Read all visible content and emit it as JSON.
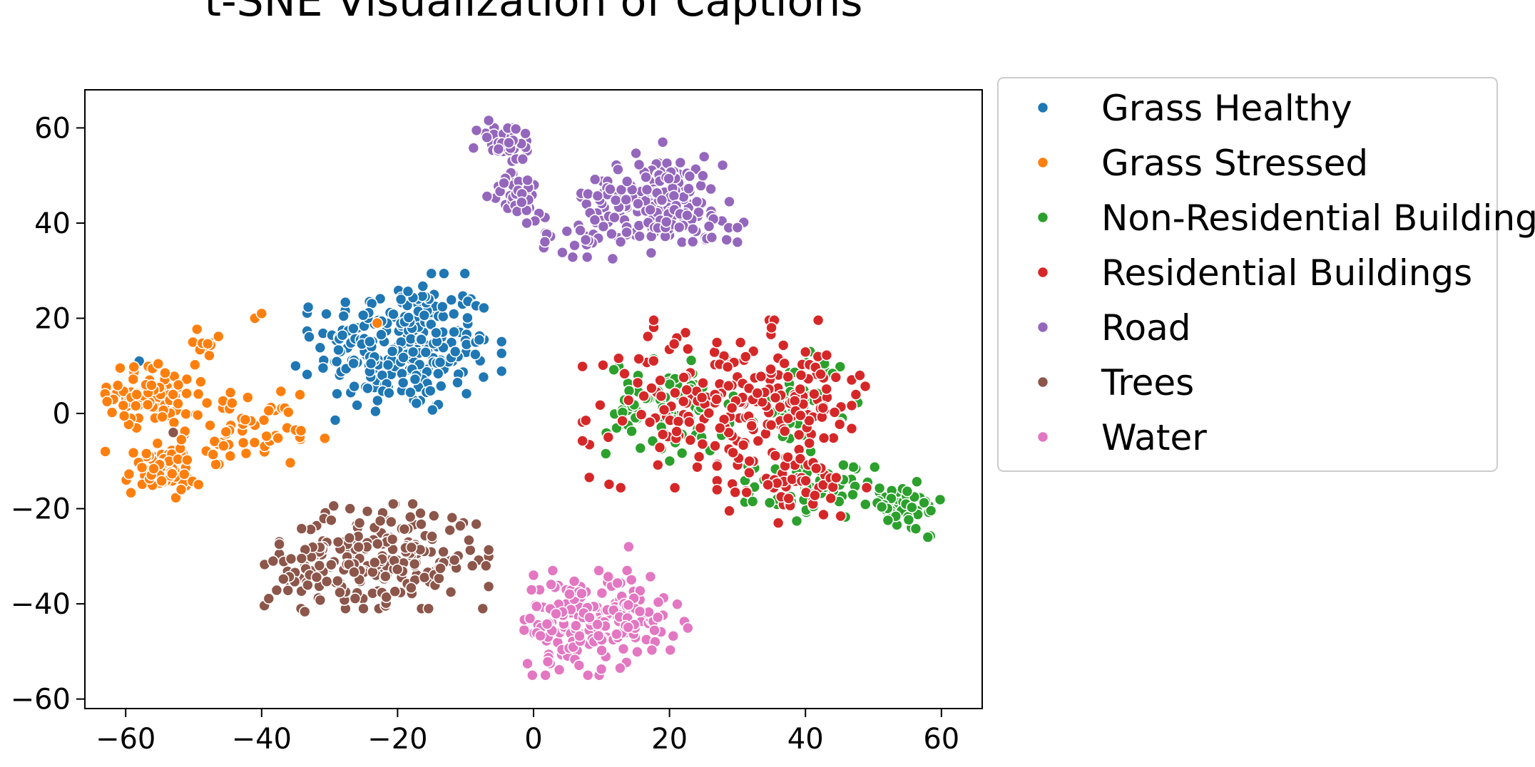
{
  "chart_data": {
    "type": "scatter",
    "title": "t-SNE Visualization of Captions",
    "xlabel": "",
    "ylabel": "",
    "xlim": [
      -66,
      66
    ],
    "ylim": [
      -62,
      68
    ],
    "xticks": [
      -60,
      -40,
      -20,
      0,
      20,
      40,
      60
    ],
    "yticks": [
      -60,
      -40,
      -20,
      0,
      20,
      40,
      60
    ],
    "xtick_labels": [
      "−60",
      "−40",
      "−20",
      "0",
      "20",
      "40",
      "60"
    ],
    "ytick_labels": [
      "−60",
      "−40",
      "−20",
      "0",
      "20",
      "40",
      "60"
    ],
    "grid": false,
    "legend_position": "outside-right",
    "series": [
      {
        "name": "Grass Healthy",
        "color": "#1f77b4",
        "clusters": [
          {
            "x": -19,
            "y": 14,
            "sx": 6.5,
            "sy": 7,
            "n": 260
          }
        ],
        "points": [
          [
            -58,
            11
          ],
          [
            -35,
            10
          ]
        ]
      },
      {
        "name": "Grass Stressed",
        "color": "#ff7f0e",
        "clusters": [
          {
            "x": -56,
            "y": 4,
            "sx": 3.2,
            "sy": 3.2,
            "n": 90
          },
          {
            "x": -55,
            "y": -12,
            "sx": 2.6,
            "sy": 2.6,
            "n": 70
          },
          {
            "x": -43,
            "y": -3,
            "sx": 4,
            "sy": 3.5,
            "n": 50
          },
          {
            "x": -48,
            "y": 14,
            "sx": 2.2,
            "sy": 2,
            "n": 10
          },
          {
            "x": -36,
            "y": -5,
            "sx": 3,
            "sy": 1,
            "n": 10
          }
        ],
        "points": [
          [
            -41,
            20
          ],
          [
            -40,
            21
          ],
          [
            -23,
            19
          ],
          [
            -63,
            -8
          ]
        ]
      },
      {
        "name": "Non-Residential Buildings",
        "color": "#2ca02c",
        "clusters": [
          {
            "x": 20,
            "y": 1,
            "sx": 4.5,
            "sy": 5,
            "n": 90
          },
          {
            "x": 40,
            "y": 3,
            "sx": 3.5,
            "sy": 5,
            "n": 45
          },
          {
            "x": 41,
            "y": -16,
            "sx": 4.5,
            "sy": 3,
            "n": 55
          },
          {
            "x": 54,
            "y": -20,
            "sx": 3.2,
            "sy": 2.6,
            "n": 45
          }
        ],
        "points": [
          [
            58,
            -26
          ]
        ]
      },
      {
        "name": "Residential Buildings",
        "color": "#d62728",
        "clusters": [
          {
            "x": 27,
            "y": 2,
            "sx": 9,
            "sy": 8,
            "n": 170
          },
          {
            "x": 40,
            "y": 4,
            "sx": 4,
            "sy": 6,
            "n": 50
          },
          {
            "x": 38,
            "y": -15,
            "sx": 5,
            "sy": 3.5,
            "n": 55
          }
        ],
        "points": [
          [
            11,
            -5
          ],
          [
            35,
            18
          ],
          [
            48,
            8
          ],
          [
            36,
            -23
          ]
        ]
      },
      {
        "name": "Road",
        "color": "#9467bd",
        "clusters": [
          {
            "x": -4,
            "y": 57,
            "sx": 2.2,
            "sy": 2.2,
            "n": 40
          },
          {
            "x": -2,
            "y": 46,
            "sx": 2.2,
            "sy": 2.2,
            "n": 35
          },
          {
            "x": 18,
            "y": 46,
            "sx": 5,
            "sy": 4,
            "n": 150
          },
          {
            "x": 9,
            "y": 38,
            "sx": 4,
            "sy": 2.5,
            "n": 40
          },
          {
            "x": 25,
            "y": 39,
            "sx": 3.5,
            "sy": 2.5,
            "n": 30
          }
        ],
        "points": [
          [
            30,
            36
          ],
          [
            19,
            57
          ],
          [
            -1,
            40
          ]
        ]
      },
      {
        "name": "Trees",
        "color": "#8c564b",
        "clusters": [
          {
            "x": -22,
            "y": -30,
            "sx": 7,
            "sy": 5,
            "n": 200
          },
          {
            "x": -33,
            "y": -33,
            "sx": 3,
            "sy": 4,
            "n": 45
          }
        ],
        "points": [
          [
            -7,
            -32
          ],
          [
            -9,
            -32
          ],
          [
            -53,
            -4
          ],
          [
            -27,
            -20
          ]
        ]
      },
      {
        "name": "Water",
        "color": "#e377c2",
        "clusters": [
          {
            "x": 7,
            "y": -44,
            "sx": 4.5,
            "sy": 5,
            "n": 150
          },
          {
            "x": 15,
            "y": -42,
            "sx": 3.5,
            "sy": 3.5,
            "n": 50
          }
        ],
        "points": [
          [
            14,
            -28
          ],
          [
            8,
            -55
          ],
          [
            0,
            -34
          ]
        ]
      }
    ]
  }
}
